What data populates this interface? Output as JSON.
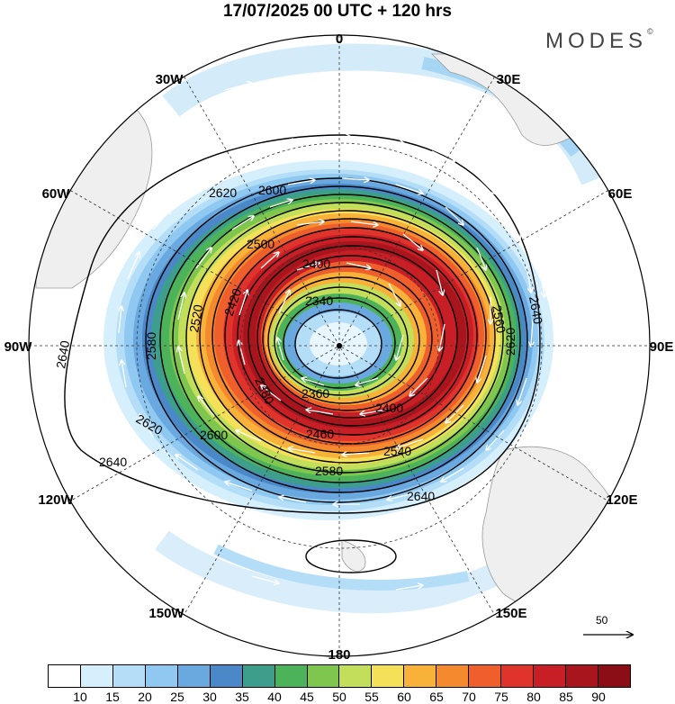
{
  "title": "17/07/2025  00 UTC  + 120 hrs",
  "logo": {
    "text": "MODES",
    "mark": "©"
  },
  "longitude_labels": {
    "lon_0": "0",
    "lon_30e": "30E",
    "lon_60e": "60E",
    "lon_90e": "90E",
    "lon_120e": "120E",
    "lon_150e": "150E",
    "lon_180": "180",
    "lon_150w": "150W",
    "lon_120w": "120W",
    "lon_90w": "90W",
    "lon_60w": "60W",
    "lon_30w": "30W"
  },
  "contour_labels": [
    "2340",
    "2360",
    "2380",
    "2400",
    "2420",
    "2460",
    "2500",
    "2520",
    "2540",
    "2560",
    "2580",
    "2600",
    "2620",
    "2640"
  ],
  "reference_vector": {
    "label": "50",
    "icon": "arrow-right-icon"
  },
  "colorbar": {
    "labels": [
      "10",
      "15",
      "20",
      "25",
      "30",
      "35",
      "40",
      "45",
      "50",
      "55",
      "60",
      "65",
      "70",
      "75",
      "80",
      "85",
      "90"
    ],
    "colors": [
      "#ffffff",
      "#d6effc",
      "#b4def8",
      "#8fc8f0",
      "#6aa8e0",
      "#4a88c7",
      "#3d9e8c",
      "#4db35a",
      "#7ec64e",
      "#c3de5a",
      "#f5e05a",
      "#f8b23a",
      "#f5892e",
      "#ee5f2c",
      "#e0332b",
      "#c81e25",
      "#a9151d",
      "#8b0d15"
    ]
  }
}
